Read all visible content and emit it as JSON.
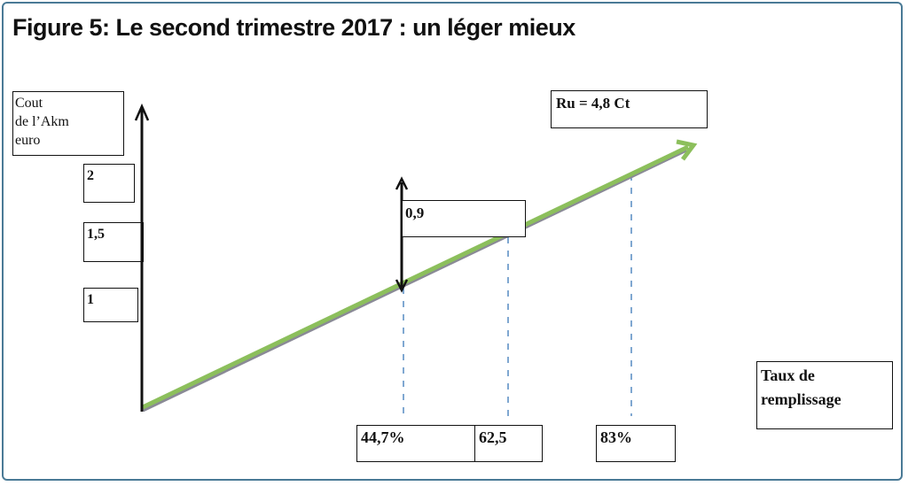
{
  "figure": {
    "title": "Figure 5: Le second trimestre 2017 : un léger mieux"
  },
  "y_axis": {
    "label_lines": [
      "Cout",
      "de l’Akm",
      "euro"
    ],
    "ticks": [
      "2",
      "1,5",
      "1"
    ]
  },
  "x_axis": {
    "label_lines": [
      "Taux de",
      "remplissage"
    ],
    "ticks": [
      "44,7%",
      "62,5",
      "83%"
    ]
  },
  "annotations": {
    "formula": "Ru = 4,8 Ct",
    "delta": "0,9"
  },
  "colors": {
    "line": "#8cbf5c",
    "line_shadow": "#8a8a96",
    "axis": "#111111",
    "guides": "#3b78b8",
    "frame": "#4a7a96"
  }
}
